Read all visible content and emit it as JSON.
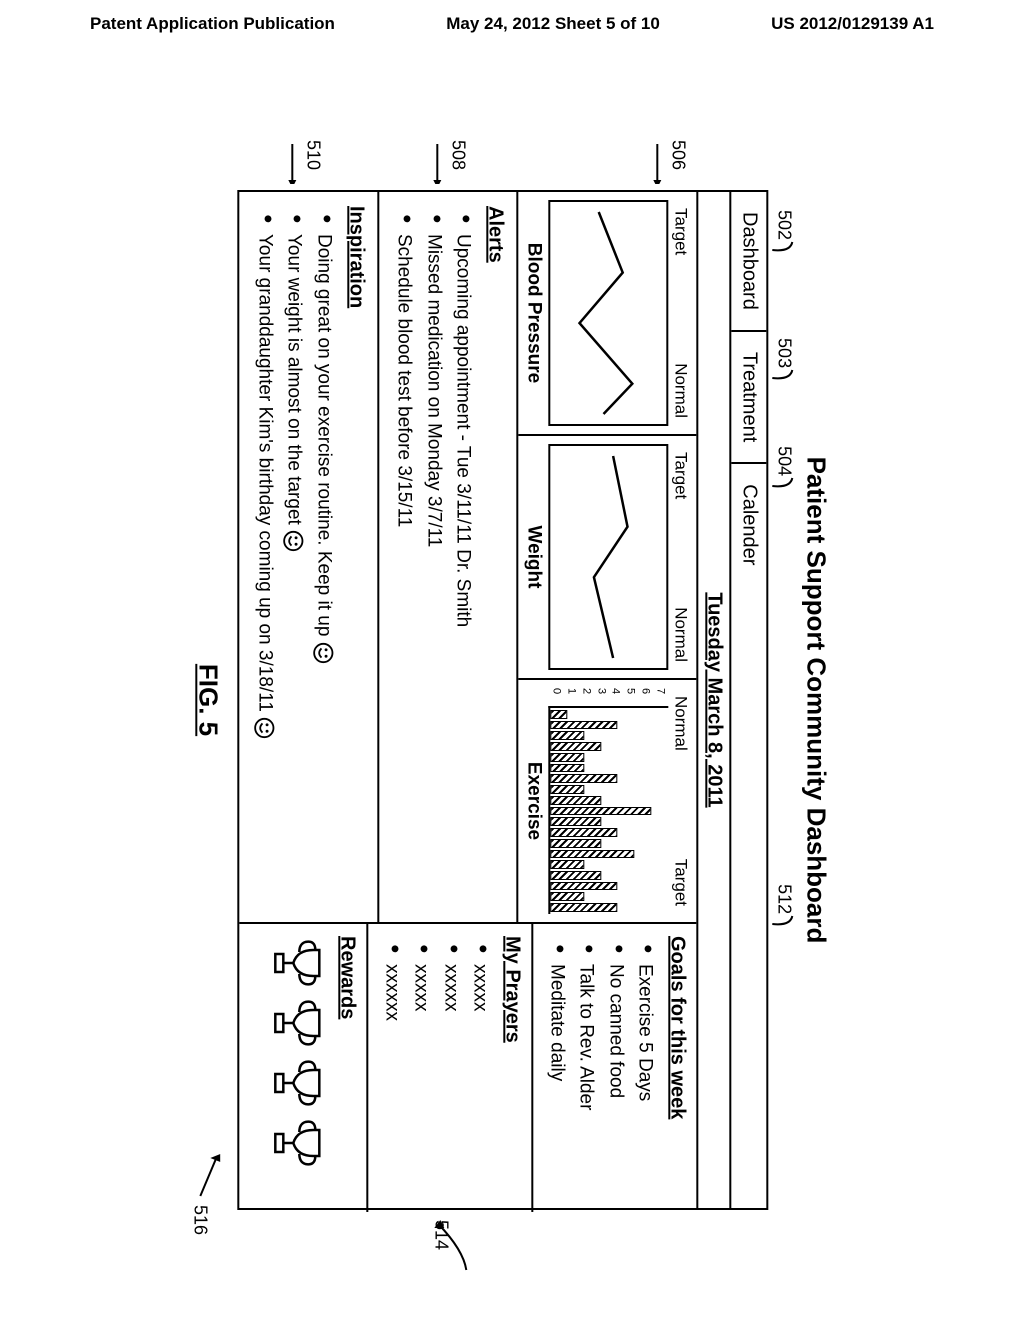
{
  "page_header": {
    "left": "Patent Application Publication",
    "center": "May 24, 2012  Sheet 5 of 10",
    "right": "US 2012/0129139 A1"
  },
  "figure_label": "FIG. 5",
  "dashboard": {
    "title": "Patient Support Community Dashboard",
    "tabs": [
      "Dashboard",
      "Treatment",
      "Calender"
    ],
    "date": "Tuesday March 8, 2011",
    "charts": {
      "blood_pressure": {
        "title": "Blood Pressure",
        "left_label": "Target",
        "right_label": "Normal",
        "line_points": [
          [
            0,
            60
          ],
          [
            30,
            35
          ],
          [
            55,
            80
          ],
          [
            85,
            25
          ],
          [
            100,
            55
          ]
        ]
      },
      "weight": {
        "title": "Weight",
        "left_label": "Target",
        "right_label": "Normal",
        "line_points": [
          [
            0,
            45
          ],
          [
            35,
            30
          ],
          [
            60,
            65
          ],
          [
            100,
            45
          ]
        ]
      },
      "exercise": {
        "title": "Exercise",
        "left_label": "Normal",
        "right_label": "Target",
        "y_ticks": [
          0,
          1,
          2,
          3,
          4,
          5,
          6,
          7
        ],
        "bars": [
          1,
          4,
          2,
          3,
          2,
          2,
          4,
          2,
          3,
          6,
          3,
          4,
          3,
          5,
          2,
          3,
          4,
          2,
          4
        ]
      }
    },
    "alerts": {
      "title": "Alerts",
      "items": [
        "Upcoming appointment - Tue 3/11/11 Dr. Smith",
        "Missed medication on Monday 3/7/11",
        "Schedule blood test before 3/15/11"
      ]
    },
    "inspiration": {
      "title": "Inspiration",
      "items": [
        {
          "text": "Doing great on your exercise routine. Keep it up",
          "smiley": true
        },
        {
          "text": "Your weight is almost on the target",
          "smiley": true
        },
        {
          "text": "Your granddaughter Kim's birthday coming up on 3/18/11",
          "smiley": true
        }
      ]
    },
    "goals": {
      "title": "Goals for this week",
      "items": [
        "Exercise 5 Days",
        "No canned food",
        "Talk to Rev. Alder",
        "Meditate daily"
      ]
    },
    "prayers": {
      "title": "My Prayers",
      "items": [
        "xxxxx",
        "xxxxx",
        "xxxxx",
        "xxxxxx"
      ]
    },
    "rewards": {
      "title": "Rewards",
      "count": 4
    }
  },
  "callouts": {
    "502": "502",
    "503": "503",
    "504": "504",
    "506": "506",
    "508": "508",
    "510": "510",
    "512": "512",
    "514": "514",
    "516": "516"
  }
}
